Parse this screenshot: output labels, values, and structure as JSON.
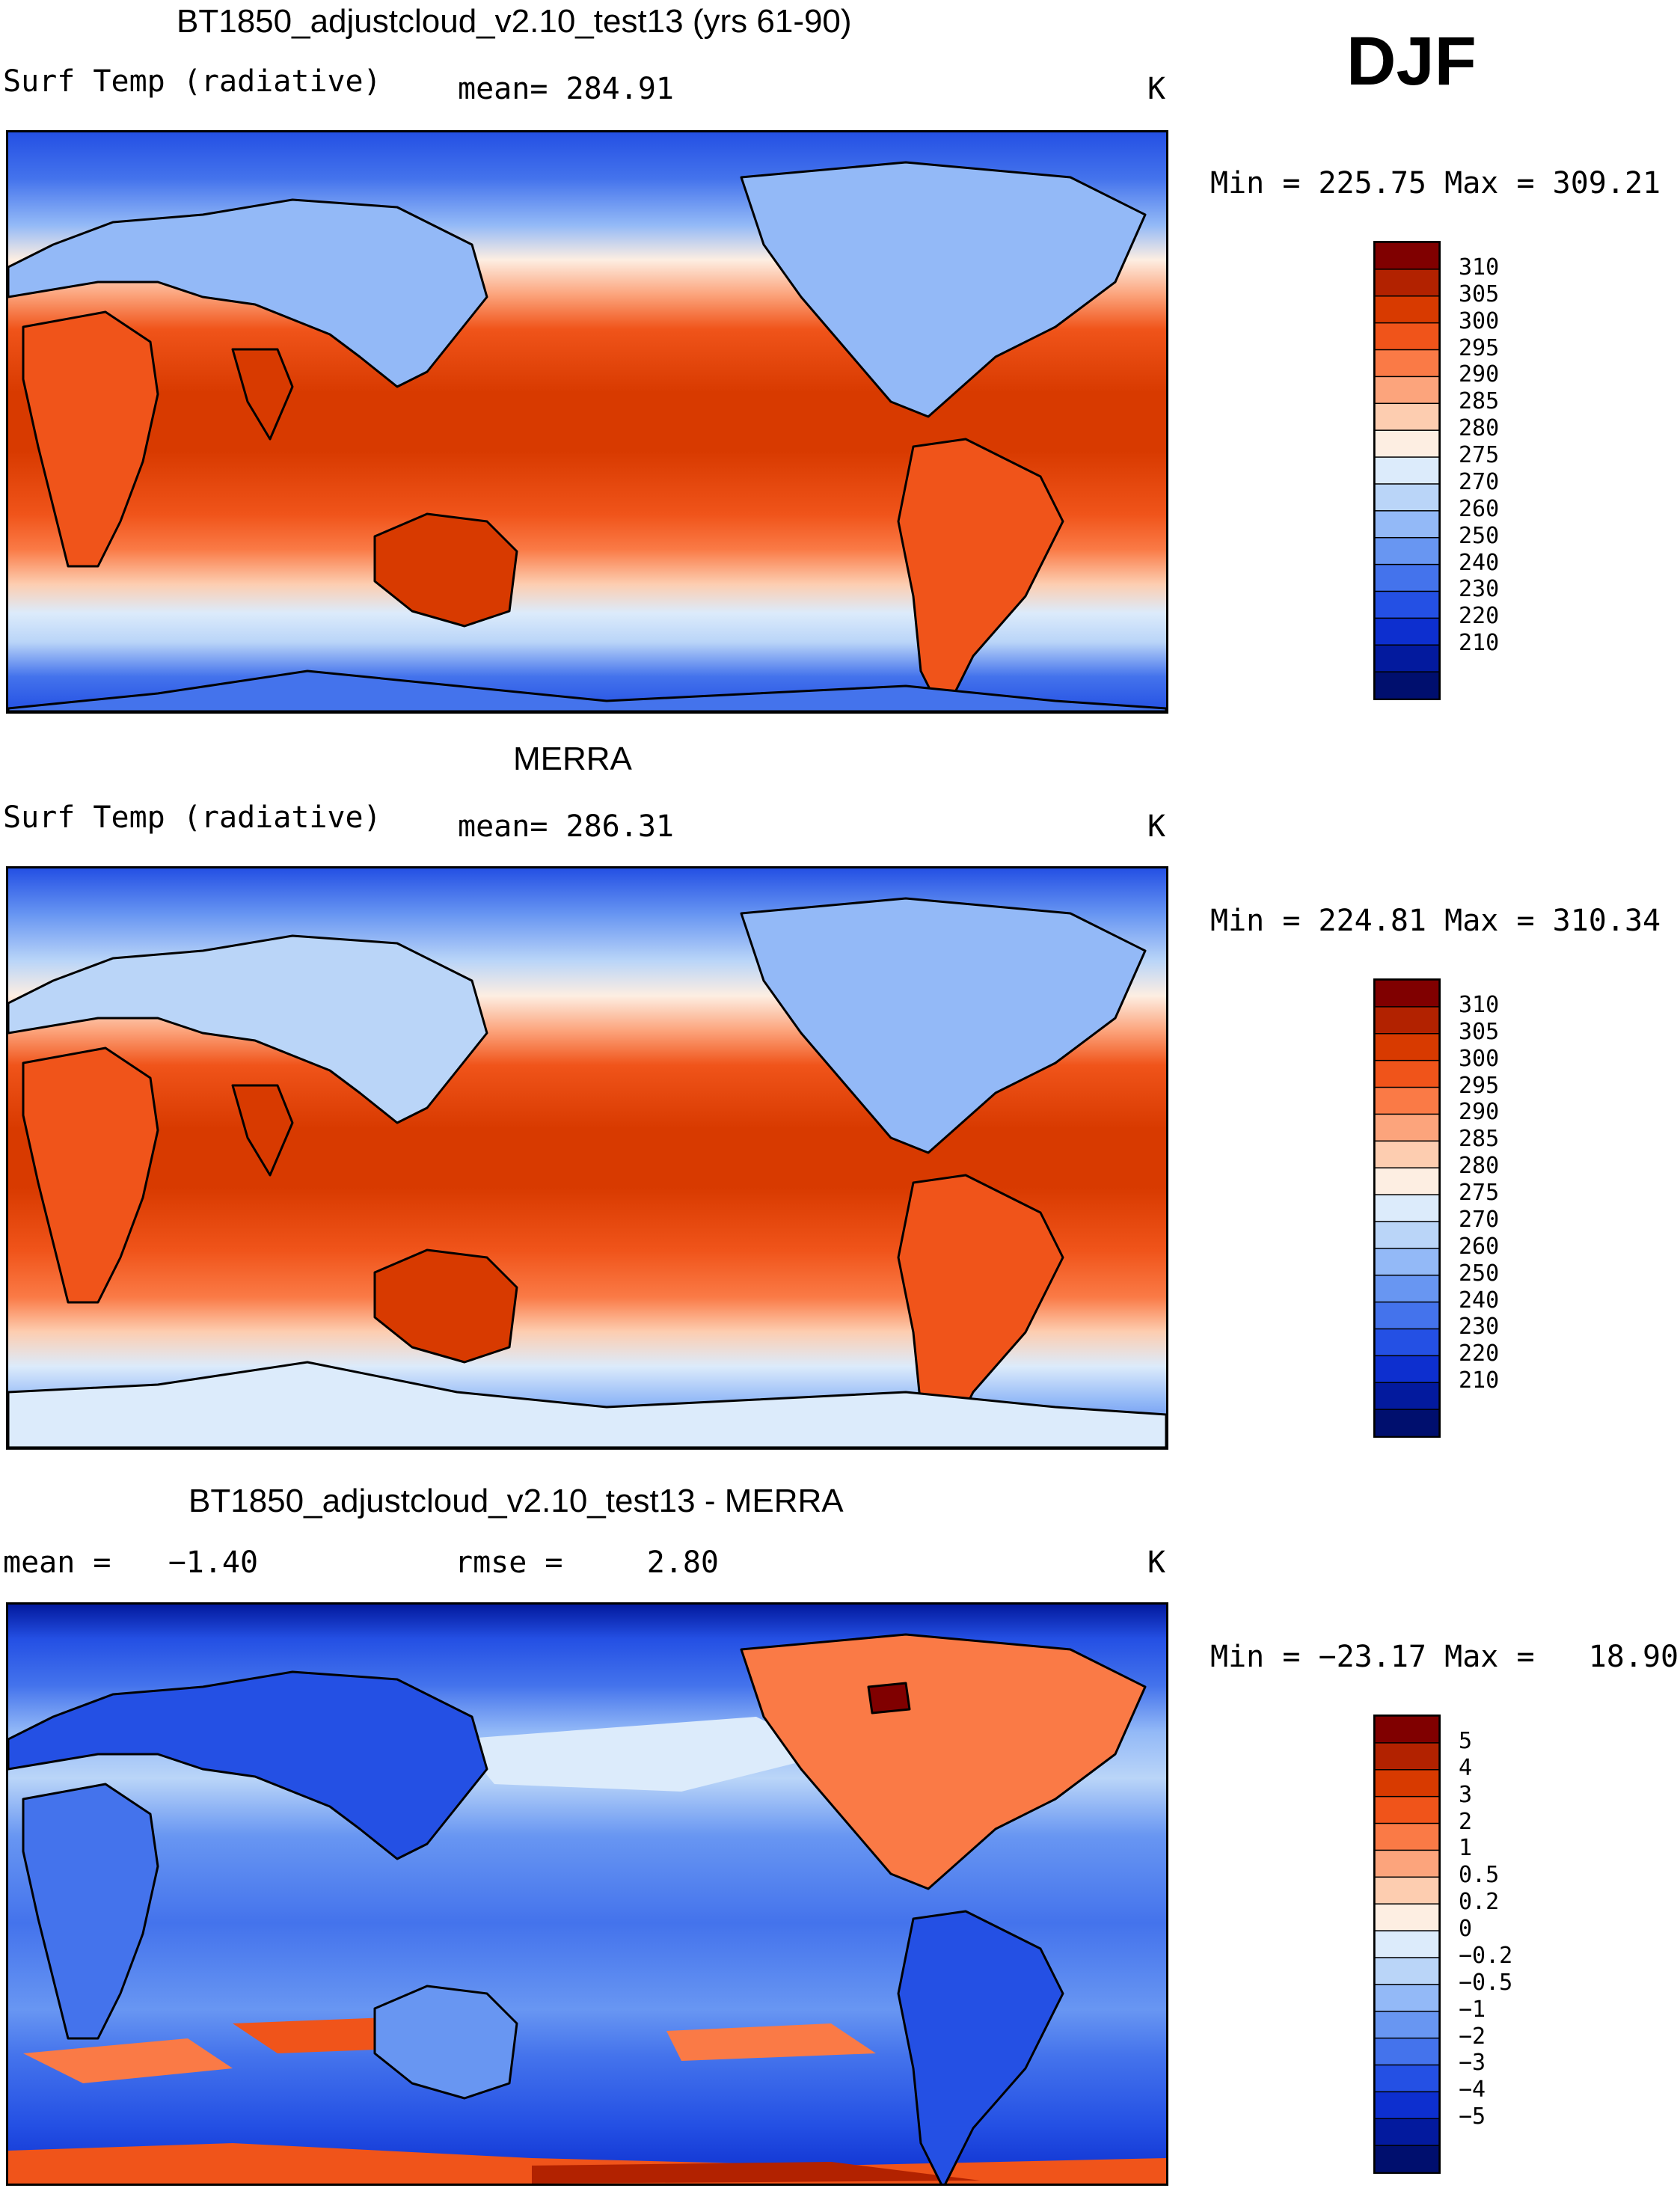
{
  "season": "DJF",
  "panels": [
    {
      "title": "BT1850_adjustcloud_v2.10_test13 (yrs 61-90)",
      "variable": "Surf Temp (radiative)",
      "left_stat": "",
      "mean_label": "mean=",
      "mean_value": "284.91",
      "units": "K",
      "min_label": "Min =",
      "min_value": "225.75",
      "max_label": "Max =",
      "max_value": "309.21"
    },
    {
      "title": "MERRA",
      "variable": "Surf Temp (radiative)",
      "mean_label": "mean=",
      "mean_value": "286.31",
      "units": "K",
      "min_label": "Min =",
      "min_value": "224.81",
      "max_label": "Max =",
      "max_value": "310.34"
    },
    {
      "title": "BT1850_adjustcloud_v2.10_test13 - MERRA",
      "mean_label": "mean =",
      "mean_value": "−1.40",
      "rmse_label": "rmse =",
      "rmse_value": "2.80",
      "units": "K",
      "min_label": "Min =",
      "min_value": "−23.17",
      "max_label": "Max =",
      "max_value": "18.90"
    }
  ],
  "colorbars": {
    "absolute": {
      "colors": [
        "#800000",
        "#b22200",
        "#d83a00",
        "#f0541a",
        "#fa7a46",
        "#fca47c",
        "#fdcdb0",
        "#fdeee2",
        "#dcebfb",
        "#bad5f8",
        "#93b9f7",
        "#6896f2",
        "#4473ec",
        "#2450e4",
        "#0d2fcf",
        "#031a9e",
        "#000f6e"
      ],
      "labels": [
        "310",
        "305",
        "300",
        "295",
        "290",
        "285",
        "280",
        "275",
        "270",
        "260",
        "250",
        "240",
        "230",
        "220",
        "210"
      ]
    },
    "difference": {
      "colors": [
        "#800000",
        "#b22200",
        "#d83a00",
        "#f0541a",
        "#fa7a46",
        "#fca47c",
        "#fdcdb0",
        "#fdeee2",
        "#dcebfb",
        "#bad5f8",
        "#93b9f7",
        "#6896f2",
        "#4473ec",
        "#2450e4",
        "#0d2fcf",
        "#031a9e",
        "#000f6e"
      ],
      "labels": [
        "5",
        "4",
        "3",
        "2",
        "1",
        "0.5",
        "0.2",
        "0",
        "−0.2",
        "−0.5",
        "−1",
        "−2",
        "−3",
        "−4",
        "−5"
      ]
    }
  },
  "chart_data": [
    {
      "type": "heatmap",
      "title": "BT1850_adjustcloud_v2.10_test13 (yrs 61-90)",
      "subtitle": "Surf Temp (radiative)",
      "units": "K",
      "mean": 284.91,
      "min": 225.75,
      "max": 309.21,
      "contour_levels": [
        210,
        220,
        230,
        240,
        250,
        260,
        270,
        275,
        280,
        285,
        290,
        295,
        300,
        305,
        310
      ]
    },
    {
      "type": "heatmap",
      "title": "MERRA",
      "subtitle": "Surf Temp (radiative)",
      "units": "K",
      "mean": 286.31,
      "min": 224.81,
      "max": 310.34,
      "contour_levels": [
        210,
        220,
        230,
        240,
        250,
        260,
        270,
        275,
        280,
        285,
        290,
        295,
        300,
        305,
        310
      ]
    },
    {
      "type": "heatmap",
      "title": "BT1850_adjustcloud_v2.10_test13 - MERRA",
      "units": "K",
      "mean": -1.4,
      "rmse": 2.8,
      "min": -23.17,
      "max": 18.9,
      "contour_levels": [
        -5,
        -4,
        -3,
        -2,
        -1,
        -0.5,
        -0.2,
        0,
        0.2,
        0.5,
        1,
        2,
        3,
        4,
        5
      ]
    }
  ]
}
